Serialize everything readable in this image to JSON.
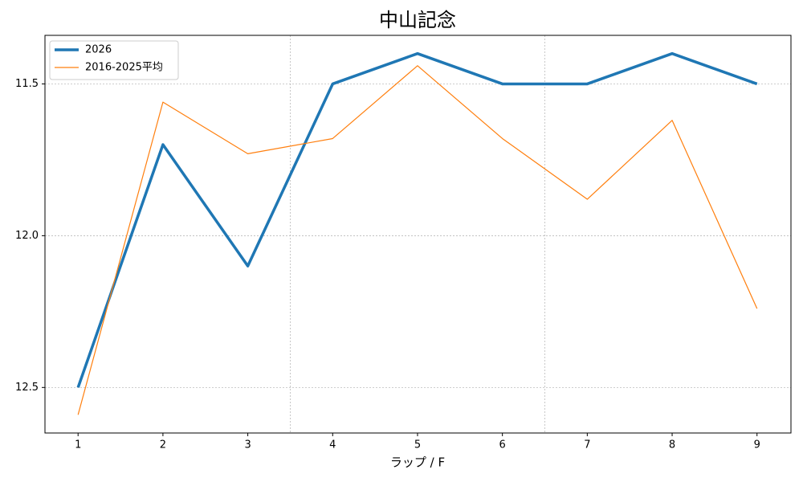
{
  "chart_data": {
    "type": "line",
    "title": "中山記念",
    "x_label": "ラップ / F",
    "x": [
      1,
      2,
      3,
      4,
      5,
      6,
      7,
      8,
      9
    ],
    "series": [
      {
        "name": "2026",
        "color": "#1f77b4",
        "width": 3.5,
        "values": [
          12.5,
          11.7,
          12.1,
          11.5,
          11.4,
          11.5,
          11.5,
          11.4,
          11.5
        ]
      },
      {
        "name": "2016-2025平均",
        "color": "#ff7f0e",
        "width": 1.2,
        "values": [
          12.59,
          11.56,
          11.73,
          11.68,
          11.44,
          11.68,
          11.88,
          11.62,
          12.24
        ]
      }
    ],
    "xlim": [
      0.61,
      9.4
    ],
    "xticks": [
      1,
      2,
      3,
      4,
      5,
      6,
      7,
      8,
      9
    ],
    "ylim": [
      12.65,
      11.34
    ],
    "yticks": [
      {
        "value": 11.5,
        "label": "11.5"
      },
      {
        "value": 12,
        "label": "12.0"
      },
      {
        "value": 12.5,
        "label": "12.5"
      }
    ],
    "x_grid_lines": [
      3.5,
      6.5
    ],
    "grid": true,
    "legend": "upper-left"
  }
}
